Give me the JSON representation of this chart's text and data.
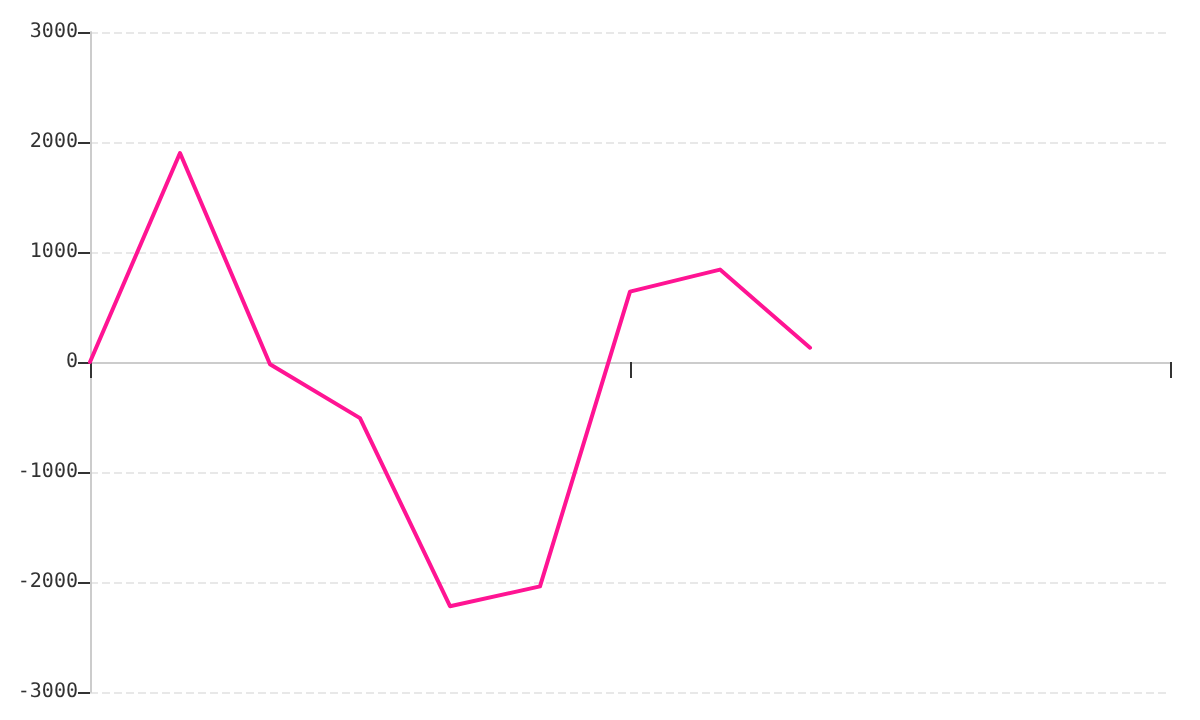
{
  "chart_data": {
    "type": "line",
    "categories": [
      null,
      null,
      null,
      null,
      null,
      null,
      null,
      null,
      null,
      null,
      null,
      null,
      null
    ],
    "series": [
      {
        "color": "#ff1493",
        "values": [
          0,
          1900,
          -20,
          -510,
          -2220,
          -2040,
          640,
          840,
          130,
          null,
          null,
          null,
          null
        ]
      }
    ],
    "ylim": [
      -3000,
      3000
    ],
    "yticks": [
      -3000,
      -2000,
      -1000,
      0,
      1000,
      2000,
      3000
    ],
    "grid": "y",
    "marker": "none",
    "line_style": "solid"
  }
}
